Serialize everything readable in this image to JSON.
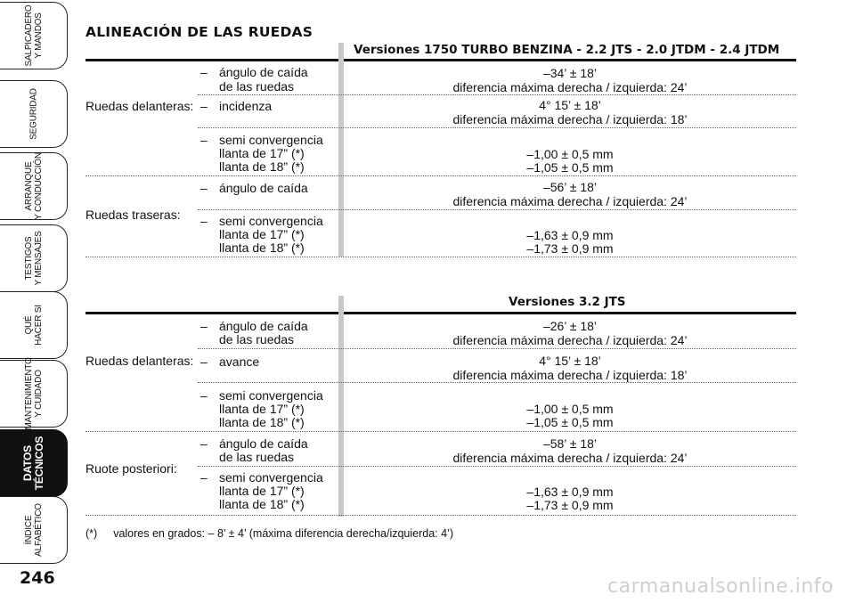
{
  "sidebar": {
    "tabs": [
      {
        "label": "SALPICADERO\nY MANDOS",
        "active": false
      },
      {
        "label": "SEGURIDAD",
        "active": false
      },
      {
        "label": "ARRANQUE\nY CONDUCCIÓN",
        "active": false
      },
      {
        "label": "TESTIGOS\nY MENSAJES",
        "active": false
      },
      {
        "label": "QUÉ\nHACER SI",
        "active": false
      },
      {
        "label": "MANTENIMIENTO\nY CUIDADO",
        "active": false
      },
      {
        "label": "DATOS\nTÉCNICOS",
        "active": true
      },
      {
        "label": "ÍNDICE\nALFABÉTICO",
        "active": false
      }
    ],
    "page_number": "246"
  },
  "title": "ALINEACIÓN DE LAS RUEDAS",
  "section1": {
    "header": "Versiones 1750 TURBO BENZINA - 2.2 JTS - 2.0 JTDM - 2.4 JTDM",
    "front_label": "Ruedas delanteras:",
    "rear_label": "Ruedas traseras:",
    "items": {
      "camber_l1": "ángulo de caída",
      "camber_l2": "de las ruedas",
      "camber_v1": "–34’ ± 18’",
      "camber_v2": "diferencia máxima derecha / izquierda: 24’",
      "caster_l1": "incidenza",
      "caster_v1": "4° 15’ ± 18’",
      "caster_v2": "diferencia máxima derecha / izquierda: 18’",
      "toe_l1": "semi convergencia",
      "toe_l2": "llanta de 17” (*)",
      "toe_l3": "llanta de 18” (*)",
      "toe_v1": "–1,00 ± 0,5 mm",
      "toe_v2": "–1,05 ± 0,5 mm",
      "rcamber_l1": "ángulo de caída",
      "rcamber_v1": "–56’ ± 18’",
      "rcamber_v2": "diferencia máxima derecha / izquierda: 24’",
      "rtoe_l1": "semi convergencia",
      "rtoe_l2": "llanta de 17” (*)",
      "rtoe_l3": "llanta de 18” (*)",
      "rtoe_v1": "–1,63 ± 0,9 mm",
      "rtoe_v2": "–1,73 ± 0,9 mm"
    }
  },
  "section2": {
    "header": "Versiones 3.2 JTS",
    "front_label": "Ruedas delanteras:",
    "rear_label": "Ruote posteriori:",
    "items": {
      "camber_l1": "ángulo de caída",
      "camber_l2": "de las ruedas",
      "camber_v1": "–26’ ± 18’",
      "camber_v2": "diferencia máxima derecha / izquierda: 24’",
      "caster_l1": "avance",
      "caster_v1": "4° 15’ ± 18’",
      "caster_v2": "diferencia máxima derecha / izquierda: 18’",
      "toe_l1": "semi convergencia",
      "toe_l2": "llanta de 17” (*)",
      "toe_l3": "llanta de 18” (*)",
      "toe_v1": "–1,00 ± 0,5 mm",
      "toe_v2": "–1,05 ± 0,5 mm",
      "rcamber_l1": "ángulo de caída",
      "rcamber_l2": "de las ruedas",
      "rcamber_v1": "–58’ ± 18’",
      "rcamber_v2": "diferencia máxima derecha / izquierda: 24’",
      "rtoe_l1": "semi convergencia",
      "rtoe_l2": "llanta de 17” (*)",
      "rtoe_l3": "llanta de 18” (*)",
      "rtoe_v1": "–1,63 ± 0,9 mm",
      "rtoe_v2": "–1,73 ± 0,9 mm"
    }
  },
  "dash": "–",
  "footnote": {
    "marker": "(*)",
    "text": "valores en grados: – 8’ ± 4’ (máxima diferencia derecha/izquierda: 4’)"
  },
  "watermark": "carmanualsonline.info"
}
